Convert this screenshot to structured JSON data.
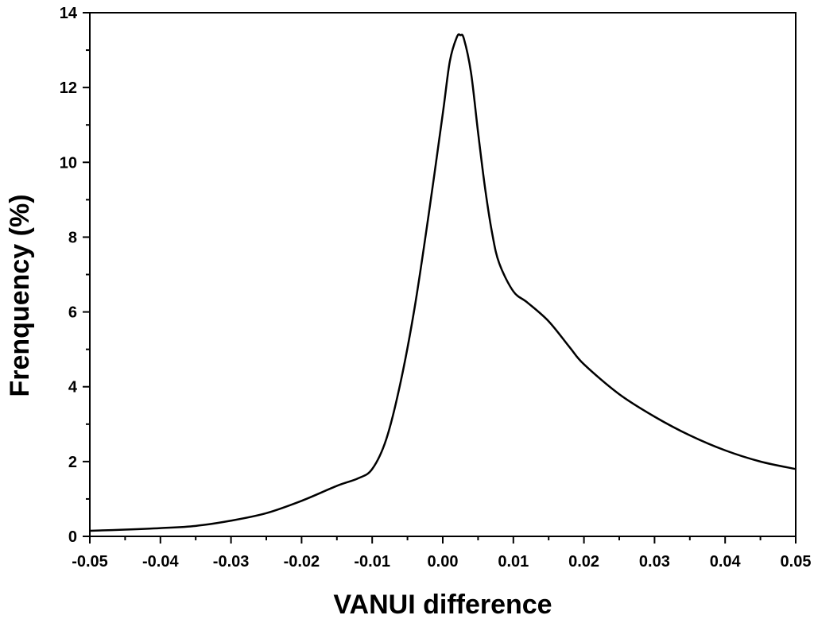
{
  "chart_data": {
    "type": "line",
    "title": "",
    "xlabel": "VANUI difference",
    "ylabel": "Frenquency (%)",
    "xlim": [
      -0.05,
      0.05
    ],
    "ylim": [
      0,
      14
    ],
    "grid": false,
    "x_ticks": [
      -0.05,
      -0.04,
      -0.03,
      -0.02,
      -0.01,
      0.0,
      0.01,
      0.02,
      0.03,
      0.04,
      0.05
    ],
    "x_tick_labels": [
      "-0.05",
      "-0.04",
      "-0.03",
      "-0.02",
      "-0.01",
      "0.00",
      "0.01",
      "0.02",
      "0.03",
      "0.04",
      "0.05"
    ],
    "y_ticks": [
      0,
      2,
      4,
      6,
      8,
      10,
      12,
      14
    ],
    "y_tick_labels": [
      "0",
      "2",
      "4",
      "6",
      "8",
      "10",
      "12",
      "14"
    ],
    "series": [
      {
        "color": "#000000",
        "x": [
          -0.05,
          -0.045,
          -0.04,
          -0.035,
          -0.03,
          -0.025,
          -0.02,
          -0.015,
          -0.012,
          -0.01,
          -0.008,
          -0.006,
          -0.004,
          -0.002,
          0.0,
          0.001,
          0.002,
          0.0025,
          0.003,
          0.004,
          0.005,
          0.006,
          0.007,
          0.008,
          0.01,
          0.012,
          0.015,
          0.018,
          0.02,
          0.025,
          0.03,
          0.035,
          0.04,
          0.045,
          0.05
        ],
        "y": [
          0.15,
          0.18,
          0.22,
          0.28,
          0.42,
          0.62,
          0.95,
          1.35,
          1.55,
          1.8,
          2.6,
          4.1,
          6.1,
          8.6,
          11.3,
          12.7,
          13.35,
          13.4,
          13.3,
          12.4,
          10.8,
          9.3,
          8.1,
          7.3,
          6.55,
          6.25,
          5.75,
          5.05,
          4.6,
          3.8,
          3.2,
          2.7,
          2.3,
          2.0,
          1.8
        ]
      }
    ]
  }
}
